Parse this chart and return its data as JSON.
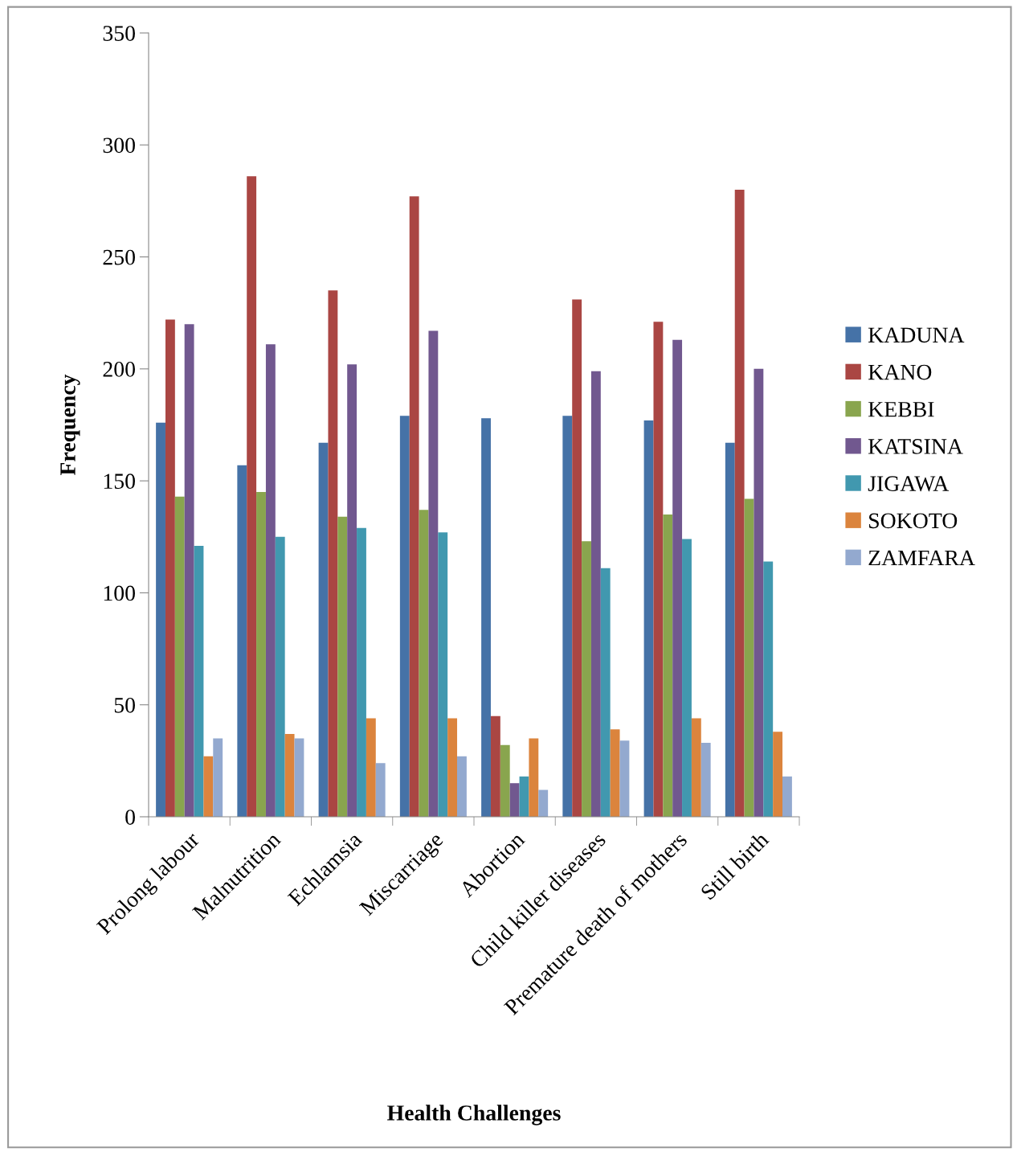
{
  "chart_data": {
    "type": "bar",
    "xlabel": "Health Challenges",
    "ylabel": "Frequency",
    "categories": [
      "Prolong labour",
      "Malnutrition",
      "Echlamsia",
      "Miscarriage",
      "Abortion",
      "Child killer diseases",
      "Premature death of mothers",
      "Still birth"
    ],
    "series": [
      {
        "name": "KADUNA",
        "color": "#4572a7",
        "values": [
          176,
          157,
          167,
          179,
          178,
          179,
          177,
          167
        ]
      },
      {
        "name": "KANO",
        "color": "#aa4643",
        "values": [
          222,
          286,
          235,
          277,
          45,
          231,
          221,
          280
        ]
      },
      {
        "name": "KEBBI",
        "color": "#89a54e",
        "values": [
          143,
          145,
          134,
          137,
          32,
          123,
          135,
          142
        ]
      },
      {
        "name": "KATSINA",
        "color": "#71588f",
        "values": [
          220,
          211,
          202,
          217,
          15,
          199,
          213,
          200
        ]
      },
      {
        "name": "JIGAWA",
        "color": "#4198af",
        "values": [
          121,
          125,
          129,
          127,
          18,
          111,
          124,
          114
        ]
      },
      {
        "name": "SOKOTO",
        "color": "#db843d",
        "values": [
          27,
          37,
          44,
          44,
          35,
          39,
          44,
          38
        ]
      },
      {
        "name": "ZAMFARA",
        "color": "#93a9cf",
        "values": [
          35,
          35,
          24,
          27,
          12,
          34,
          33,
          18
        ]
      }
    ],
    "ylim": [
      0,
      350
    ],
    "yticks": [
      0,
      50,
      100,
      150,
      200,
      250,
      300,
      350
    ],
    "grid": false,
    "legend": "right"
  }
}
